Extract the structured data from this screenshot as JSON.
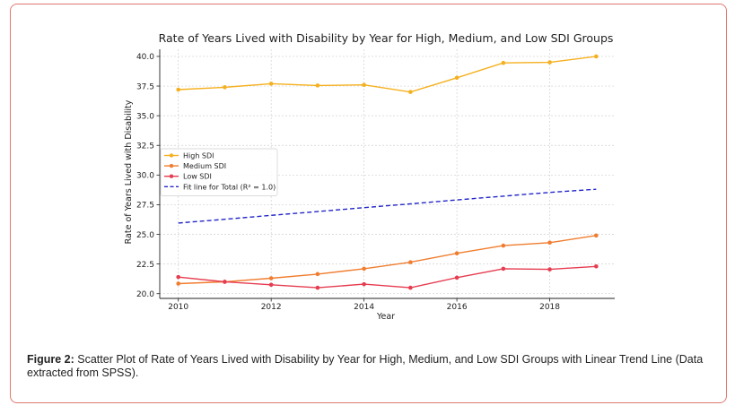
{
  "caption": {
    "label": "Figure 2:",
    "text": " Scatter Plot of Rate of Years Lived with Disability by Year for High, Medium, and Low SDI Groups with Linear Trend Line (Data extracted from SPSS)."
  },
  "chart_data": {
    "type": "line",
    "title": "Rate of Years Lived with Disability by Year for High, Medium, and Low SDI Groups",
    "xlabel": "Year",
    "ylabel": "Rate of Years Lived with Disability",
    "x": [
      2010,
      2011,
      2012,
      2013,
      2014,
      2015,
      2016,
      2017,
      2018,
      2019
    ],
    "xlim": [
      2009.6,
      2019.4
    ],
    "ylim": [
      19.6,
      40.6
    ],
    "xticks": [
      2010,
      2012,
      2014,
      2016,
      2018
    ],
    "xtick_labels": [
      "2010",
      "2012",
      "2014",
      "2016",
      "2018"
    ],
    "yticks": [
      20.0,
      22.5,
      25.0,
      27.5,
      30.0,
      32.5,
      35.0,
      37.5,
      40.0
    ],
    "ytick_labels": [
      "20.0",
      "22.5",
      "25.0",
      "27.5",
      "30.0",
      "32.5",
      "35.0",
      "37.5",
      "40.0"
    ],
    "grid": true,
    "legend_position": "center-left",
    "series": [
      {
        "name": "High SDI",
        "color": "#f5b01f",
        "style": "line-marker",
        "values": [
          37.2,
          37.4,
          37.7,
          37.55,
          37.6,
          37.0,
          38.2,
          39.45,
          39.5,
          40.0
        ]
      },
      {
        "name": "Medium SDI",
        "color": "#f07d2f",
        "style": "line-marker",
        "values": [
          20.85,
          21.0,
          21.3,
          21.65,
          22.1,
          22.65,
          23.4,
          24.05,
          24.3,
          24.9
        ]
      },
      {
        "name": "Low SDI",
        "color": "#e63c50",
        "style": "line-marker",
        "values": [
          21.4,
          21.0,
          20.75,
          20.5,
          20.8,
          20.5,
          21.35,
          22.1,
          22.05,
          22.3
        ]
      },
      {
        "name": "Fit line for Total (R² = 1.0)",
        "color": "#2326c8",
        "style": "dashed",
        "values": [
          25.95,
          26.27,
          26.6,
          26.92,
          27.25,
          27.57,
          27.9,
          28.22,
          28.54,
          28.8
        ]
      }
    ]
  }
}
